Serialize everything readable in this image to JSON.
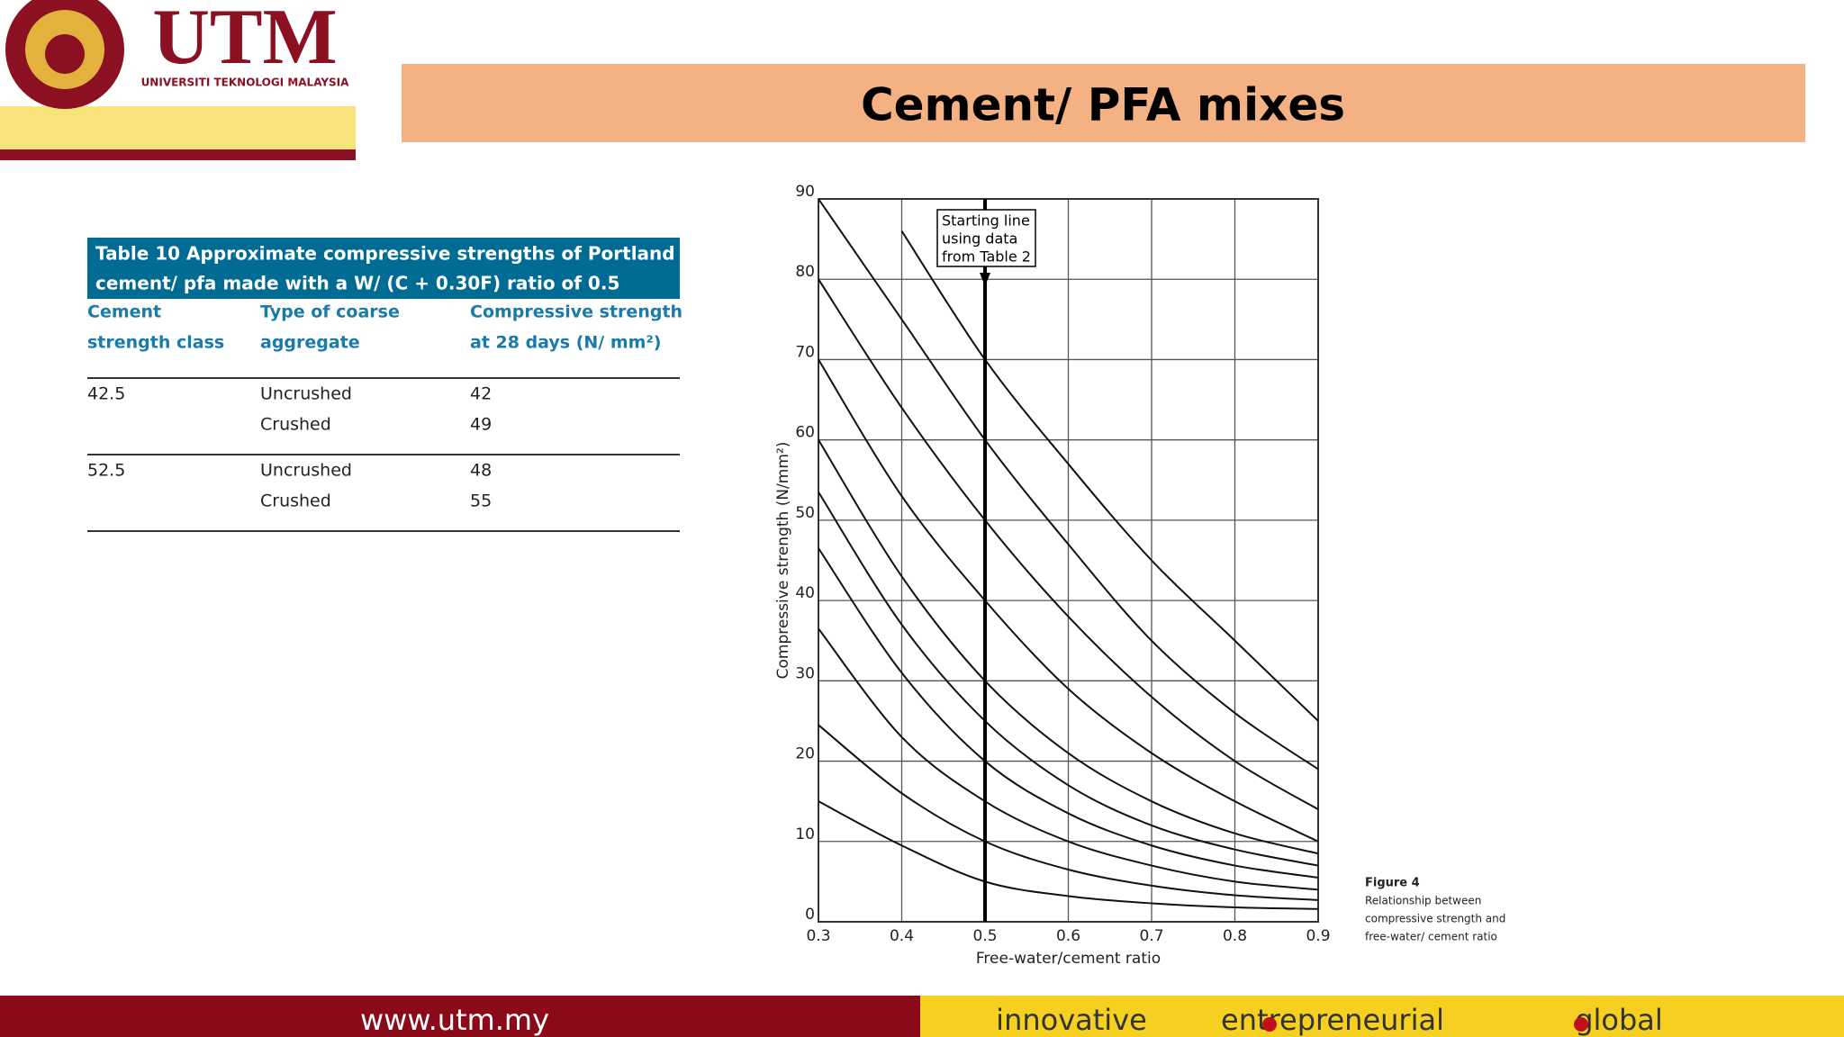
{
  "header": {
    "logo_text": "UTM",
    "logo_subtext": "UNIVERSITI TEKNOLOGI MALAYSIA",
    "title": "Cement/ PFA mixes"
  },
  "table": {
    "caption": [
      "Table 10   Approximate compressive strengths of Portland",
      "cement/ pfa made with a W/ (C + 0.30F) ratio of 0.5"
    ],
    "columns": [
      [
        "Cement",
        "strength class"
      ],
      [
        "Type of coarse",
        "aggregate"
      ],
      [
        "Compressive strength",
        "at 28 days (N/ mm²)"
      ]
    ],
    "groups": [
      {
        "class": "42.5",
        "rows": [
          [
            "Uncrushed",
            42
          ],
          [
            "Crushed",
            49
          ]
        ]
      },
      {
        "class": "52.5",
        "rows": [
          [
            "Uncrushed",
            48
          ],
          [
            "Crushed",
            55
          ]
        ]
      }
    ]
  },
  "chart_data": {
    "type": "line",
    "x_label": "Free-water/cement ratio",
    "y_label": "Compressive strength (N/mm²)",
    "x": [
      0.3,
      0.4,
      0.5,
      0.6,
      0.7,
      0.8,
      0.9
    ],
    "series": [
      {
        "color": "#111111",
        "values": [
          15,
          9.5,
          5,
          3.2,
          2.3,
          1.8,
          1.6
        ]
      },
      {
        "color": "#111111",
        "values": [
          24.5,
          16,
          10,
          6.5,
          4.5,
          3.3,
          2.7
        ]
      },
      {
        "color": "#111111",
        "values": [
          36.5,
          23,
          15,
          10,
          7,
          5,
          4
        ]
      },
      {
        "color": "#111111",
        "values": [
          46.5,
          31,
          20,
          13.5,
          9.5,
          7,
          5.5
        ]
      },
      {
        "color": "#111111",
        "values": [
          53.5,
          37,
          25,
          17,
          12,
          9,
          7
        ]
      },
      {
        "color": "#111111",
        "values": [
          60,
          43,
          30,
          21,
          15,
          11,
          8.5
        ]
      },
      {
        "color": "#111111",
        "values": [
          70,
          53,
          40,
          29,
          21,
          15,
          10
        ]
      },
      {
        "color": "#111111",
        "values": [
          80,
          64,
          50,
          38,
          28,
          20,
          14
        ]
      },
      {
        "color": "#111111",
        "values": [
          90,
          75,
          60,
          47,
          35,
          26,
          19
        ]
      },
      {
        "color": "#111111",
        "values": [
          null,
          86,
          70,
          57,
          45,
          35,
          25
        ]
      }
    ],
    "xlim": [
      0.3,
      0.9
    ],
    "xticks": [
      0.3,
      0.4,
      0.5,
      0.6,
      0.7,
      0.8,
      0.9
    ],
    "ylim": [
      0,
      90
    ],
    "yticks": [
      0,
      10,
      20,
      30,
      40,
      50,
      60,
      70,
      80,
      90
    ],
    "grid": true,
    "annotation": {
      "lines": [
        "Starting line",
        "using data",
        "from Table 2"
      ],
      "x": 0.5
    },
    "caption": [
      "Figure 4",
      "Relationship between",
      "compressive strength and",
      "free-water/ cement ratio"
    ]
  },
  "footer": {
    "url": "www.utm.my",
    "tagline": [
      "innovative",
      "entrepreneurial",
      "global"
    ]
  }
}
